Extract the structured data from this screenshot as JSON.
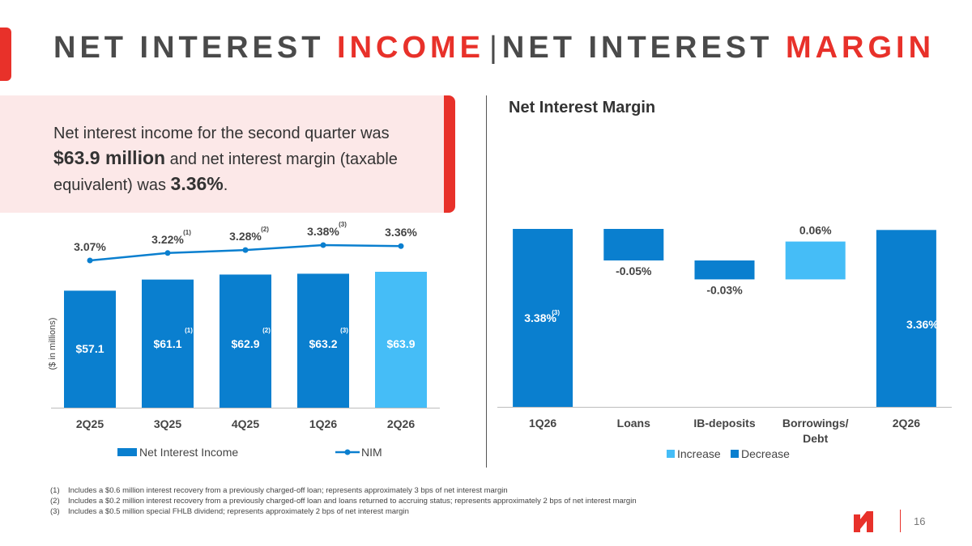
{
  "title": {
    "part1": "NET INTEREST ",
    "part2": "INCOME",
    "sep": "|",
    "part3": "NET INTEREST ",
    "part4": "MARGIN"
  },
  "callout": {
    "t1": "Net interest income for the second quarter was ",
    "b1": "$63.9 million",
    "t2": " and net interest margin (taxable equivalent) was ",
    "b2": "3.36%",
    "t3": "."
  },
  "colors": {
    "accent_red": "#e8312a",
    "bar_blue": "#0a7fcf",
    "bar_light": "#45bdf7",
    "callout_bg": "#fce8e8"
  },
  "chart_data": [
    {
      "type": "bar",
      "categories": [
        "2Q25",
        "3Q25",
        "4Q25",
        "1Q26",
        "2Q26"
      ],
      "series": [
        {
          "name": "Net Interest Income",
          "values": [
            57.1,
            61.1,
            62.9,
            63.2,
            63.9
          ],
          "labels": [
            "$57.1",
            "$61.1",
            "$62.9",
            "$63.2",
            "$63.9"
          ],
          "footnotes": [
            "",
            "(1)",
            "(2)",
            "(3)",
            ""
          ]
        },
        {
          "name": "NIM",
          "type": "line",
          "values": [
            3.07,
            3.22,
            3.28,
            3.38,
            3.36
          ],
          "labels": [
            "3.07%",
            "3.22%",
            "3.28%",
            "3.38%",
            "3.36%"
          ],
          "footnotes": [
            "",
            "(1)",
            "(2)",
            "(3)",
            ""
          ]
        }
      ],
      "ylabel": "($ in millions)",
      "legend": "bottom",
      "grid": false
    },
    {
      "type": "waterfall",
      "title": "Net Interest Margin",
      "categories": [
        "1Q26",
        "Loans",
        "IB-deposits",
        "Borrowings/ Debt",
        "2Q26"
      ],
      "values": [
        3.38,
        -0.05,
        -0.03,
        0.06,
        3.36
      ],
      "labels": [
        "3.38%",
        "-0.05%",
        "-0.03%",
        "0.06%",
        "3.36%"
      ],
      "footnotes": [
        "(3)",
        "",
        "",
        "",
        ""
      ],
      "legend_items": [
        "Increase",
        "Decrease"
      ],
      "legend": "bottom",
      "grid": false
    }
  ],
  "footnotes": [
    {
      "num": "(1)",
      "text": "Includes a $0.6 million interest recovery from a previously charged-off loan; represents approximately 3 bps of net interest margin"
    },
    {
      "num": "(2)",
      "text": "Includes a $0.2 million interest recovery from a previously charged-off loan and loans returned to accruing status; represents approximately 2 bps of net interest margin"
    },
    {
      "num": "(3)",
      "text": "Includes a $0.5 million special FHLB dividend; represents approximately 2 bps of net interest margin"
    }
  ],
  "page_number": "16"
}
